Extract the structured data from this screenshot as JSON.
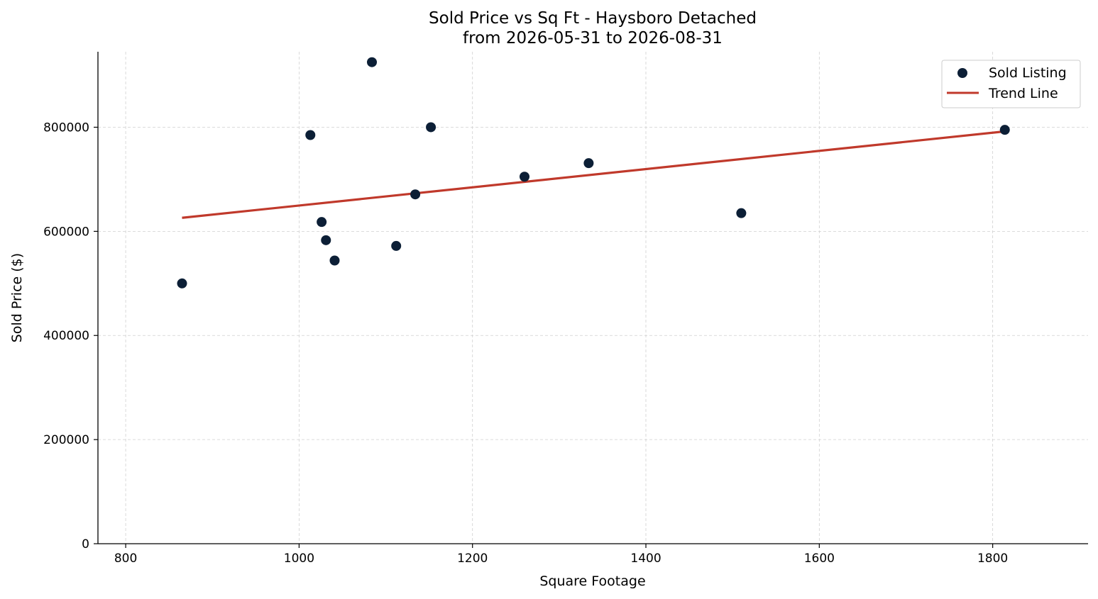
{
  "chart_data": {
    "type": "scatter",
    "title_line1": "Sold Price vs Sq Ft - Haysboro Detached",
    "title_line2": "from 2026-05-31 to 2026-08-31",
    "xlabel": "Square Footage",
    "ylabel": "Sold Price ($)",
    "xlim": [
      768,
      1910
    ],
    "ylim": [
      0,
      945000
    ],
    "xticks": [
      800,
      1000,
      1200,
      1400,
      1600,
      1800
    ],
    "yticks": [
      0,
      200000,
      400000,
      600000,
      800000
    ],
    "grid": true,
    "legend_position": "top-right",
    "series": [
      {
        "name": "Sold Listing",
        "kind": "scatter",
        "color": "#0c1f36",
        "points": [
          {
            "x": 865,
            "y": 500000
          },
          {
            "x": 1013,
            "y": 785000
          },
          {
            "x": 1026,
            "y": 618000
          },
          {
            "x": 1031,
            "y": 583000
          },
          {
            "x": 1041,
            "y": 544000
          },
          {
            "x": 1084,
            "y": 925000
          },
          {
            "x": 1112,
            "y": 572000
          },
          {
            "x": 1134,
            "y": 671000
          },
          {
            "x": 1152,
            "y": 800000
          },
          {
            "x": 1260,
            "y": 705000
          },
          {
            "x": 1334,
            "y": 731000
          },
          {
            "x": 1510,
            "y": 635000
          },
          {
            "x": 1814,
            "y": 795000
          }
        ]
      },
      {
        "name": "Trend Line",
        "kind": "line",
        "color": "#c0392b",
        "points": [
          {
            "x": 865,
            "y": 626000
          },
          {
            "x": 1814,
            "y": 792000
          }
        ]
      }
    ]
  }
}
